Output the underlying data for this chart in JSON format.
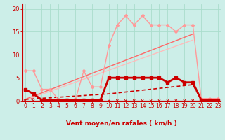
{
  "bg_color": "#cceee8",
  "grid_color": "#aadddd",
  "xlabel": "Vent moyen/en rafales ( km/h )",
  "ylim": [
    0,
    21
  ],
  "xlim": [
    -0.3,
    23.3
  ],
  "yticks": [
    0,
    5,
    10,
    15,
    20
  ],
  "xticks": [
    0,
    1,
    2,
    3,
    4,
    5,
    6,
    7,
    8,
    9,
    10,
    11,
    12,
    13,
    14,
    15,
    16,
    17,
    18,
    19,
    20,
    21,
    22,
    23
  ],
  "line_dark_red": {
    "x": [
      0,
      1,
      2,
      3,
      4,
      5,
      6,
      7,
      8,
      9,
      10,
      11,
      12,
      13,
      14,
      15,
      16,
      17,
      18,
      19,
      20,
      21,
      22,
      23
    ],
    "y": [
      2.5,
      1.5,
      0.2,
      0.2,
      0.2,
      0.2,
      0.2,
      0.2,
      0.2,
      0.2,
      5.0,
      5.0,
      5.0,
      5.0,
      5.0,
      5.0,
      5.0,
      4.0,
      5.0,
      4.0,
      4.0,
      0.2,
      0.2,
      0.2
    ],
    "color": "#cc0000",
    "lw": 2.0,
    "marker": "s",
    "ms": 2.5
  },
  "line_light_red": {
    "x": [
      0,
      1,
      2,
      3,
      4,
      5,
      6,
      7,
      8,
      9,
      10,
      11,
      12,
      13,
      14,
      15,
      16,
      17,
      18,
      19,
      20,
      21,
      22,
      23
    ],
    "y": [
      6.5,
      6.5,
      2.5,
      2.5,
      0.2,
      0.2,
      0.2,
      6.5,
      3.0,
      3.0,
      12.0,
      16.5,
      18.5,
      16.5,
      18.5,
      16.5,
      16.5,
      16.5,
      15.0,
      16.5,
      16.5,
      0.5,
      0.5,
      0.5
    ],
    "color": "#ff9999",
    "lw": 1.0,
    "marker": "D",
    "ms": 2.0
  },
  "trend1": {
    "x": [
      0,
      20
    ],
    "y": [
      0.3,
      14.5
    ],
    "color": "#ff6666",
    "lw": 1.0
  },
  "trend2": {
    "x": [
      0,
      20
    ],
    "y": [
      0.1,
      13.2
    ],
    "color": "#ffbbbb",
    "lw": 1.0
  },
  "dashed_mean": {
    "x": [
      0,
      10,
      20,
      21
    ],
    "y": [
      0.3,
      1.5,
      3.5,
      0.3
    ],
    "color": "#cc0000",
    "lw": 1.2,
    "dashes": [
      3,
      2
    ]
  },
  "arrow_color": "#cc0000",
  "tick_color": "#cc0000",
  "spine_color": "#cc0000"
}
